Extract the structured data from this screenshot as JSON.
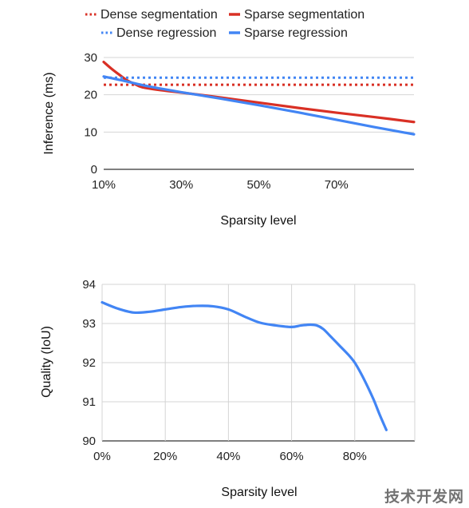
{
  "watermark": "技术开发网",
  "chart_data": [
    {
      "type": "line",
      "xlabel": "Sparsity level",
      "ylabel": "Inference (ms)",
      "xlim": [
        10,
        90
      ],
      "ylim": [
        0,
        30
      ],
      "x_ticks": [
        10,
        30,
        50,
        70
      ],
      "x_tick_labels": [
        "10%",
        "30%",
        "50%",
        "70%"
      ],
      "y_ticks": [
        0,
        10,
        20,
        30
      ],
      "y_tick_labels": [
        "0",
        "10",
        "20",
        "30"
      ],
      "grid": "horizontal",
      "legend": "top",
      "series": [
        {
          "name": "Dense segmentation",
          "color": "#d93025",
          "style": "dotted",
          "x": [
            10,
            90
          ],
          "y": [
            22.7,
            22.7
          ]
        },
        {
          "name": "Sparse segmentation",
          "color": "#d93025",
          "style": "solid",
          "x": [
            10,
            12,
            14,
            16,
            18,
            20,
            25,
            30,
            40,
            50,
            60,
            70,
            80,
            90
          ],
          "y": [
            28.8,
            27.0,
            25.4,
            23.9,
            22.9,
            22.0,
            21.2,
            20.6,
            19.3,
            17.9,
            16.5,
            15.2,
            14.0,
            12.7
          ]
        },
        {
          "name": "Dense regression",
          "color": "#4285f4",
          "style": "dotted",
          "x": [
            10,
            90
          ],
          "y": [
            24.6,
            24.6
          ]
        },
        {
          "name": "Sparse regression",
          "color": "#4285f4",
          "style": "solid",
          "x": [
            10,
            15,
            20,
            25,
            30,
            40,
            50,
            60,
            70,
            80,
            90
          ],
          "y": [
            24.9,
            23.8,
            22.6,
            21.6,
            20.7,
            19.0,
            17.2,
            15.3,
            13.3,
            11.3,
            9.4
          ]
        }
      ]
    },
    {
      "type": "line",
      "xlabel": "Sparsity level",
      "ylabel": "Quality (IoU)",
      "xlim": [
        0,
        99
      ],
      "ylim": [
        90,
        94
      ],
      "x_ticks": [
        0,
        20,
        40,
        60,
        80
      ],
      "x_tick_labels": [
        "0%",
        "20%",
        "40%",
        "60%",
        "80%"
      ],
      "y_ticks": [
        90,
        91,
        92,
        93,
        94
      ],
      "y_tick_labels": [
        "90",
        "91",
        "92",
        "93",
        "94"
      ],
      "grid": "both",
      "legend": "none",
      "series": [
        {
          "color": "#4285f4",
          "style": "solid",
          "x": [
            0,
            5,
            10,
            15,
            20,
            25,
            30,
            35,
            40,
            45,
            50,
            55,
            60,
            63,
            66,
            68,
            70,
            72,
            75,
            78,
            80,
            82,
            84,
            86,
            88,
            90
          ],
          "y": [
            93.54,
            93.38,
            93.28,
            93.3,
            93.36,
            93.42,
            93.45,
            93.44,
            93.36,
            93.18,
            93.02,
            92.95,
            92.91,
            92.95,
            92.97,
            92.95,
            92.86,
            92.7,
            92.45,
            92.2,
            92.0,
            91.72,
            91.4,
            91.05,
            90.65,
            90.28
          ]
        }
      ]
    }
  ]
}
